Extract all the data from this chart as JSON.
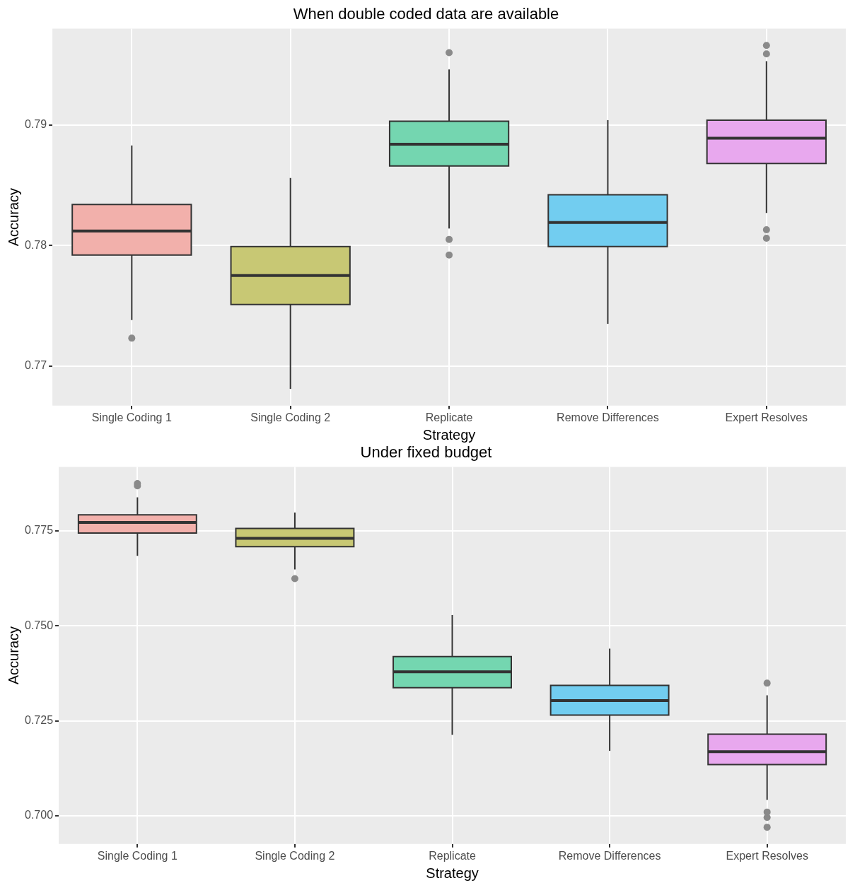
{
  "chart_data": [
    {
      "type": "box",
      "title": "When double coded data are available",
      "xlabel": "Strategy",
      "ylabel": "Accuracy",
      "categories": [
        "Single Coding 1",
        "Single Coding 2",
        "Replicate",
        "Remove Differences",
        "Expert Resolves"
      ],
      "colors": [
        "#f2b0ab",
        "#c8c874",
        "#74d6b0",
        "#72cdf0",
        "#e8a8ee"
      ],
      "ylim": [
        0.7667,
        0.798
      ],
      "yticks": [
        0.77,
        0.78,
        0.79
      ],
      "grid": true,
      "legend": false,
      "boxes": [
        {
          "low": 0.7738,
          "q1": 0.7792,
          "median": 0.7812,
          "q3": 0.7834,
          "high": 0.7883,
          "outliers": [
            0.7723
          ]
        },
        {
          "low": 0.7681,
          "q1": 0.7751,
          "median": 0.7775,
          "q3": 0.7799,
          "high": 0.7856
        },
        {
          "low": 0.7814,
          "q1": 0.7866,
          "median": 0.7884,
          "q3": 0.7903,
          "high": 0.7946,
          "outliers": [
            0.796,
            0.7805,
            0.7792
          ]
        },
        {
          "low": 0.7735,
          "q1": 0.7799,
          "median": 0.7819,
          "q3": 0.7842,
          "high": 0.7904
        },
        {
          "low": 0.7827,
          "q1": 0.7868,
          "median": 0.7889,
          "q3": 0.7904,
          "high": 0.7953,
          "outliers": [
            0.7966,
            0.7959,
            0.7813,
            0.7806
          ]
        }
      ]
    },
    {
      "type": "box",
      "title": "Under fixed budget",
      "xlabel": "Strategy",
      "ylabel": "Accuracy",
      "categories": [
        "Single Coding 1",
        "Single Coding 2",
        "Replicate",
        "Remove Differences",
        "Expert Resolves"
      ],
      "colors": [
        "#f2b0ab",
        "#c8c874",
        "#74d6b0",
        "#72cdf0",
        "#e8a8ee"
      ],
      "ylim": [
        0.6926,
        0.7918
      ],
      "yticks": [
        {
          "value": 0.7,
          "label": "0.700"
        },
        {
          "value": 0.725,
          "label": "0.725"
        },
        {
          "value": 0.75,
          "label": "0.750"
        },
        {
          "value": 0.775,
          "label": "0.775"
        }
      ],
      "grid": true,
      "legend": false,
      "boxes": [
        {
          "low": 0.7684,
          "q1": 0.7744,
          "median": 0.7772,
          "q3": 0.7792,
          "high": 0.7838,
          "outliers": [
            0.7874,
            0.7868
          ]
        },
        {
          "low": 0.7648,
          "q1": 0.7708,
          "median": 0.773,
          "q3": 0.7756,
          "high": 0.7798,
          "outliers": [
            0.7624
          ]
        },
        {
          "low": 0.7213,
          "q1": 0.7337,
          "median": 0.7379,
          "q3": 0.7419,
          "high": 0.7528
        },
        {
          "low": 0.7171,
          "q1": 0.7265,
          "median": 0.7303,
          "q3": 0.7343,
          "high": 0.744
        },
        {
          "low": 0.7042,
          "q1": 0.7135,
          "median": 0.7169,
          "q3": 0.7215,
          "high": 0.7317,
          "outliers": [
            0.7349,
            0.701,
            0.6996,
            0.697
          ]
        }
      ]
    }
  ]
}
